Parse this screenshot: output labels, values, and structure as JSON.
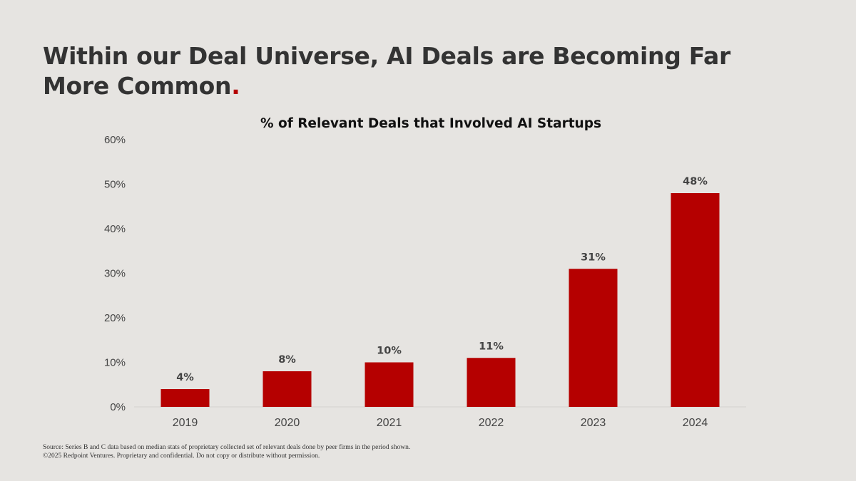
{
  "slide": {
    "title_main": "Within our Deal Universe, AI Deals are Becoming Far More Common",
    "title_dot": ".",
    "accent_color": "#b50000",
    "bar_color": "#b50000"
  },
  "chart_data": {
    "type": "bar",
    "title": "% of Relevant Deals that Involved AI Startups",
    "categories": [
      "2019",
      "2020",
      "2021",
      "2022",
      "2023",
      "2024"
    ],
    "values": [
      4,
      8,
      10,
      11,
      31,
      48
    ],
    "data_labels": [
      "4%",
      "8%",
      "10%",
      "11%",
      "31%",
      "48%"
    ],
    "yticks": [
      0,
      10,
      20,
      30,
      40,
      50,
      60
    ],
    "ytick_labels": [
      "0%",
      "10%",
      "20%",
      "30%",
      "40%",
      "50%",
      "60%"
    ],
    "ylim": [
      0,
      60
    ],
    "xlabel": "",
    "ylabel": "",
    "grid": false
  },
  "footer": {
    "source": "Source: Series B and C data based on median stats of proprietary collected set of relevant deals done by peer firms in the period shown.",
    "copyright": "©2025 Redpoint Ventures. Proprietary and confidential. Do not copy or distribute without permission."
  }
}
